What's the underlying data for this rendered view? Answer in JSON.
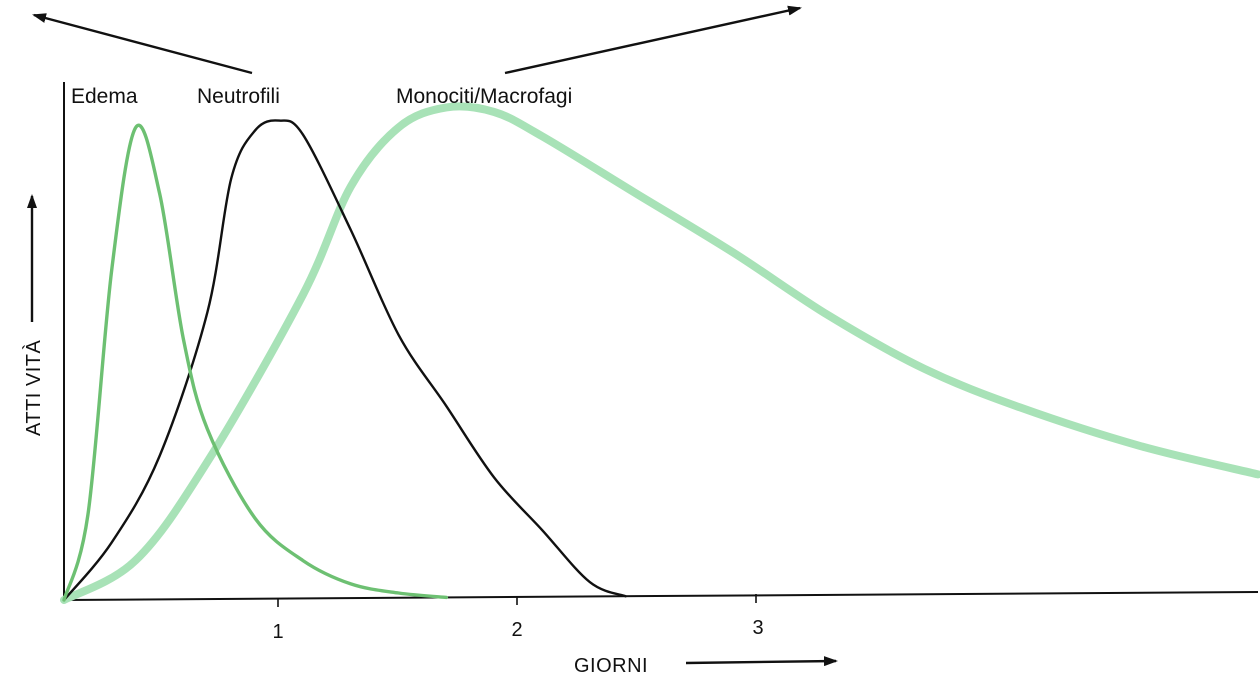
{
  "chart_data": {
    "type": "line",
    "title": "",
    "xlabel": "GIORNI",
    "ylabel": "ATTI VITÀ",
    "x_ticks": [
      "1",
      "2",
      "3"
    ],
    "xlim": [
      0,
      5
    ],
    "ylim": [
      0,
      1
    ],
    "grid": false,
    "legend": "labels above curves",
    "series": [
      {
        "name": "Edema",
        "color": "#6dc072",
        "x": [
          0,
          0.1,
          0.2,
          0.3,
          0.4,
          0.5,
          0.6,
          0.8,
          1.0,
          1.2,
          1.4,
          1.6
        ],
        "y": [
          0,
          0.18,
          0.7,
          1.0,
          0.86,
          0.55,
          0.36,
          0.17,
          0.08,
          0.03,
          0.01,
          0.0
        ]
      },
      {
        "name": "Neutrofili",
        "color": "#111111",
        "x": [
          0,
          0.2,
          0.4,
          0.6,
          0.7,
          0.8,
          0.9,
          1.0,
          1.2,
          1.4,
          1.6,
          1.8,
          2.0,
          2.2,
          2.35
        ],
        "y": [
          0,
          0.12,
          0.3,
          0.6,
          0.88,
          0.98,
          1.0,
          0.97,
          0.77,
          0.55,
          0.4,
          0.25,
          0.14,
          0.03,
          0.0
        ]
      },
      {
        "name": "Monociti/Macrofagi",
        "color": "#a8e2b7",
        "x": [
          0,
          0.3,
          0.6,
          1.0,
          1.2,
          1.4,
          1.6,
          1.8,
          2.0,
          2.4,
          2.8,
          3.2,
          3.6,
          4.0,
          4.5,
          5.0
        ],
        "y": [
          0,
          0.08,
          0.28,
          0.62,
          0.84,
          0.96,
          1.0,
          0.99,
          0.94,
          0.82,
          0.7,
          0.57,
          0.46,
          0.38,
          0.3,
          0.24
        ]
      }
    ]
  }
}
